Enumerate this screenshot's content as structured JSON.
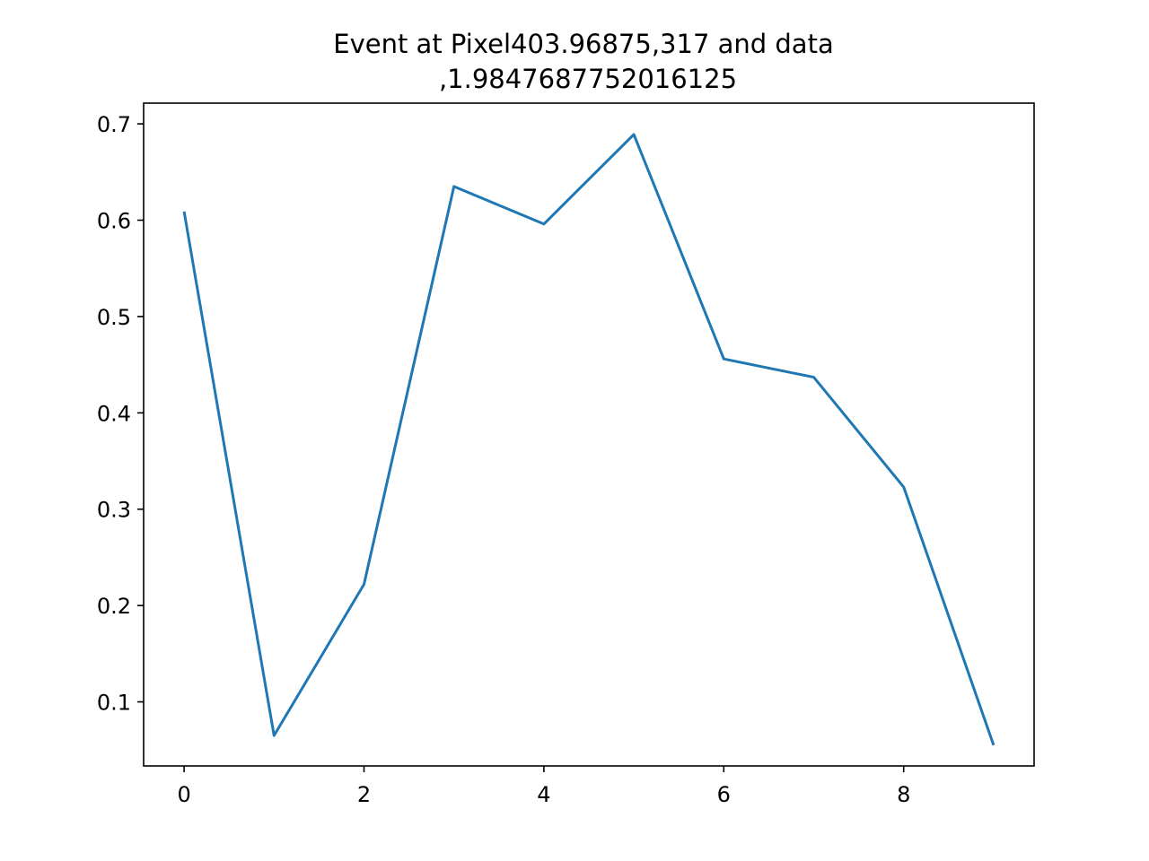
{
  "chart_data": {
    "type": "line",
    "title_lines": [
      "Event at Pixel403.96875,317 and data",
      ",1.9847687752016125"
    ],
    "xlabel": "",
    "ylabel": "",
    "xlim": [
      -0.45,
      9.45
    ],
    "ylim": [
      0.0335,
      0.7215
    ],
    "x_ticks": [
      0,
      2,
      4,
      6,
      8
    ],
    "x_tick_labels": [
      "0",
      "2",
      "4",
      "6",
      "8"
    ],
    "y_ticks": [
      0.1,
      0.2,
      0.3,
      0.4,
      0.5,
      0.6,
      0.7
    ],
    "y_tick_labels": [
      "0.1",
      "0.2",
      "0.3",
      "0.4",
      "0.5",
      "0.6",
      "0.7"
    ],
    "grid": false,
    "legend": "none",
    "series": [
      {
        "color": "#1f77b4",
        "x": [
          0,
          1,
          2,
          3,
          4,
          5,
          6,
          7,
          8,
          9
        ],
        "y": [
          0.609,
          0.065,
          0.222,
          0.635,
          0.596,
          0.689,
          0.456,
          0.437,
          0.323,
          0.055
        ]
      }
    ]
  }
}
